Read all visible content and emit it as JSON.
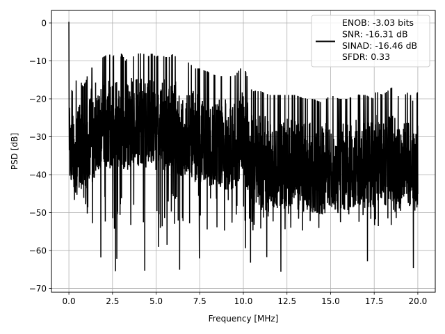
{
  "chart_data": {
    "type": "line",
    "xlabel": "Frequency [MHz]",
    "ylabel": "PSD [dB]",
    "xlim": [
      -1.0,
      21.0
    ],
    "ylim": [
      -71.0,
      3.3
    ],
    "xticks": [
      0.0,
      2.5,
      5.0,
      7.5,
      10.0,
      12.5,
      15.0,
      17.5,
      20.0
    ],
    "xtick_labels": [
      "0.0",
      "2.5",
      "5.0",
      "7.5",
      "10.0",
      "12.5",
      "15.0",
      "17.5",
      "20.0"
    ],
    "yticks": [
      0,
      -10,
      -20,
      -30,
      -40,
      -50,
      -60,
      -70
    ],
    "ytick_labels": [
      "0",
      "−10",
      "−20",
      "−30",
      "−40",
      "−50",
      "−60",
      "−70"
    ],
    "grid": true,
    "legend_position": "top-right",
    "line_color": "#000000",
    "series": [
      {
        "name": "ENOB: -3.03 bits\nSNR: -16.31 dB\nSINAD: -16.46 dB\nSFDR: 0.33",
        "x": [
          0.0,
          0.05,
          0.1,
          0.2,
          0.3,
          0.4,
          0.5,
          0.6,
          0.8,
          1.0,
          1.25,
          1.4,
          1.5,
          1.75,
          2.0,
          2.25,
          2.5,
          2.75,
          2.95,
          3.0,
          3.25,
          3.5,
          3.75,
          4.0,
          4.25,
          4.5,
          4.75,
          5.0,
          5.25,
          5.5,
          5.75,
          6.0,
          6.25,
          6.5,
          6.75,
          7.0,
          7.25,
          7.5,
          8.0,
          8.5,
          9.0,
          9.5,
          10.0,
          10.5,
          11.0,
          11.5,
          12.0,
          12.5,
          13.0,
          13.5,
          14.0,
          14.5,
          15.0,
          15.5,
          16.0,
          16.5,
          17.0,
          17.5,
          17.6,
          18.0,
          18.5,
          19.0,
          19.5,
          19.75,
          20.0
        ],
        "y": [
          0.3,
          -13,
          -17,
          -18,
          -17,
          -15,
          -16,
          -14,
          -17,
          -15,
          -10,
          -14,
          -9,
          -10,
          -9,
          -8,
          -9,
          -8,
          -11,
          -8,
          -10,
          -8,
          -9,
          -8,
          -8,
          -9,
          -8,
          -9,
          -8,
          -9,
          -9,
          -8,
          -10,
          -11,
          -10,
          -11,
          -12,
          -12,
          -13,
          -14,
          -14,
          -14,
          -11,
          -18,
          -18,
          -19,
          -19,
          -19,
          -19,
          -20,
          -20,
          -21,
          -19,
          -20,
          -20,
          -19,
          -19,
          -20,
          -18,
          -19,
          -17,
          -20,
          -18,
          -21,
          -18
        ]
      }
    ]
  }
}
